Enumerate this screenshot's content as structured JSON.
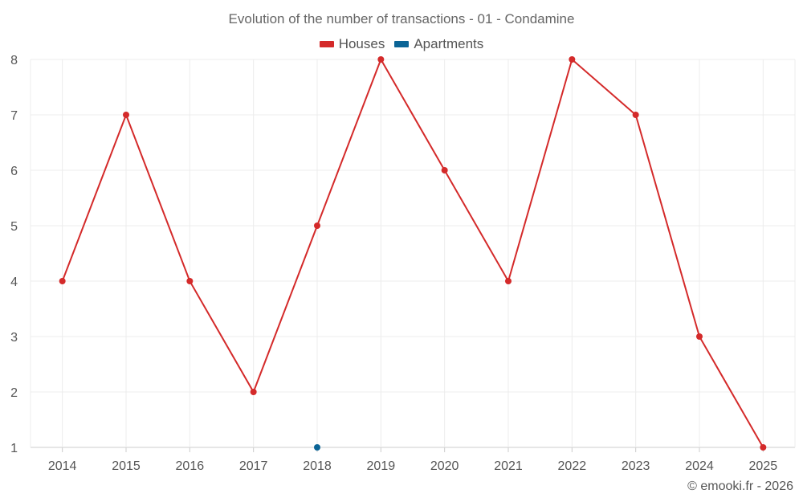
{
  "title": "Evolution of the number of transactions - 01 - Condamine",
  "credit": "© emooki.fr - 2026",
  "chart_data": {
    "type": "line",
    "title": "Evolution of the number of transactions - 01 - Condamine",
    "xlabel": "",
    "ylabel": "",
    "categories": [
      "2014",
      "2015",
      "2016",
      "2017",
      "2018",
      "2019",
      "2020",
      "2021",
      "2022",
      "2023",
      "2024",
      "2025"
    ],
    "ylim": [
      1,
      8
    ],
    "yticks": [
      1,
      2,
      3,
      4,
      5,
      6,
      7,
      8
    ],
    "grid": true,
    "legend_position": "top-center",
    "series": [
      {
        "name": "Houses",
        "color": "#d42a2a",
        "values": [
          4,
          7,
          4,
          2,
          5,
          8,
          6,
          4,
          8,
          7,
          3,
          1
        ]
      },
      {
        "name": "Apartments",
        "color": "#0b6496",
        "values": [
          null,
          null,
          null,
          null,
          1,
          null,
          null,
          null,
          null,
          null,
          null,
          null
        ]
      }
    ]
  }
}
